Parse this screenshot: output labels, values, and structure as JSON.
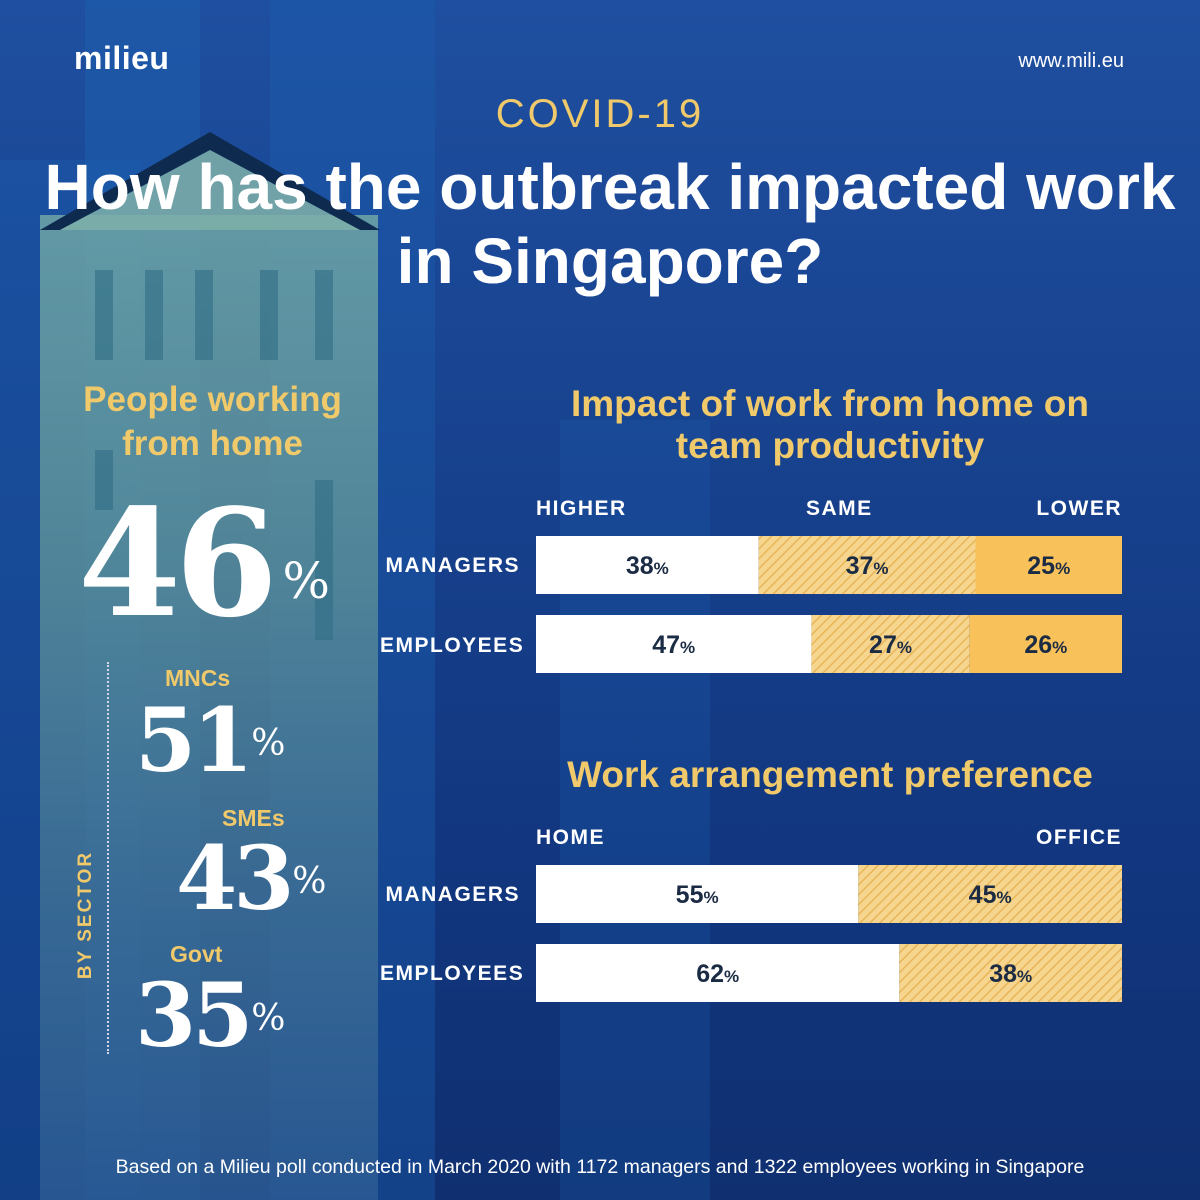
{
  "brand": {
    "logo_text": "milieu",
    "url": "www.mili.eu"
  },
  "eyebrow": "COVID-19",
  "headline": "How has the outbreak impacted work in Singapore?",
  "wfh": {
    "title": "People working from home",
    "overall": "46",
    "pct_sign": "%",
    "by_sector_label": "BY SECTOR",
    "sectors": [
      {
        "label": "MNCs",
        "value": "51"
      },
      {
        "label": "SMEs",
        "value": "43"
      },
      {
        "label": "Govt",
        "value": "35"
      }
    ]
  },
  "footer": "Based on a Milieu poll conducted in March 2020 with 1172 managers and 1322 employees working in Singapore",
  "colors": {
    "white": "#ffffff",
    "tan_hatch": "#f2c875",
    "gold": "#f8c15a",
    "title_gold": "#f0c96b"
  },
  "chart_data": [
    {
      "type": "bar",
      "stacked": "100%",
      "orientation": "horizontal",
      "title": "Impact of work from home on team productivity",
      "columns": [
        "HIGHER",
        "SAME",
        "LOWER"
      ],
      "categories": [
        "MANAGERS",
        "EMPLOYEES"
      ],
      "series": [
        {
          "name": "HIGHER",
          "values": [
            38,
            47
          ],
          "fill": "white"
        },
        {
          "name": "SAME",
          "values": [
            37,
            27
          ],
          "fill": "hatch"
        },
        {
          "name": "LOWER",
          "values": [
            25,
            26
          ],
          "fill": "gold"
        }
      ],
      "unit": "%"
    },
    {
      "type": "bar",
      "stacked": "100%",
      "orientation": "horizontal",
      "title": "Work arrangement preference",
      "columns": [
        "HOME",
        "OFFICE"
      ],
      "categories": [
        "MANAGERS",
        "EMPLOYEES"
      ],
      "series": [
        {
          "name": "HOME",
          "values": [
            55,
            62
          ],
          "fill": "white"
        },
        {
          "name": "OFFICE",
          "values": [
            45,
            38
          ],
          "fill": "hatch"
        }
      ],
      "unit": "%"
    }
  ]
}
